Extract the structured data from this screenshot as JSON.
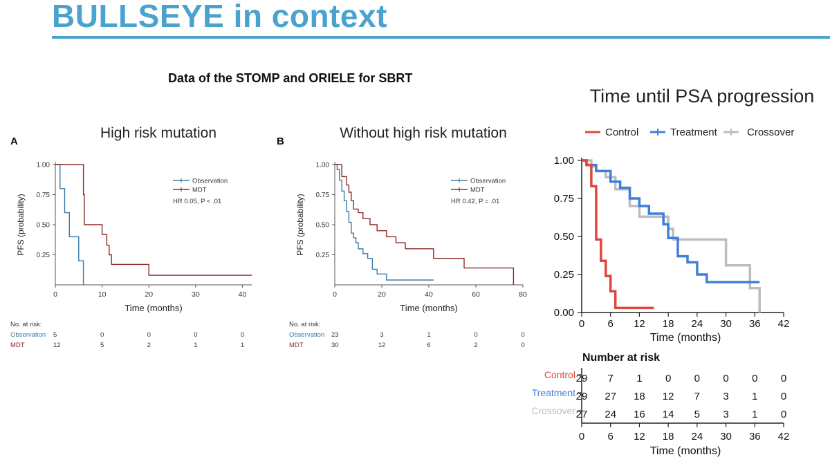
{
  "slide": {
    "title": "BULLSEYE in context",
    "subtitle": "Data of the STOMP and ORIELE for SBRT"
  },
  "colors": {
    "accent": "#4aa3cf",
    "observation": "#3b78a8",
    "mdt": "#8b2a2a",
    "control": "#e0463c",
    "treatment": "#3f7fdc",
    "crossover": "#bdbdbd"
  },
  "chart_data": [
    {
      "type": "line",
      "panel_label": "A",
      "title": "High risk mutation",
      "xlabel": "Time (months)",
      "ylabel": "PFS (probability)",
      "xlim": [
        0,
        42
      ],
      "ylim": [
        0,
        1
      ],
      "xticks": [
        0,
        10,
        20,
        30,
        40
      ],
      "yticks": [
        0.25,
        0.5,
        0.75,
        1.0
      ],
      "ytick_labels": [
        "0.25",
        "0.50",
        "0.75",
        "1.00"
      ],
      "legend": [
        "Observation",
        "MDT"
      ],
      "annotation": "HR 0.05, P < .01",
      "series": [
        {
          "name": "Observation",
          "x": [
            0,
            1,
            1,
            2,
            2,
            3,
            3,
            5,
            5,
            6,
            6
          ],
          "y": [
            1,
            1,
            0.8,
            0.8,
            0.6,
            0.6,
            0.4,
            0.4,
            0.2,
            0.2,
            0
          ]
        },
        {
          "name": "MDT",
          "x": [
            0,
            6,
            6,
            6.2,
            6.2,
            10,
            10,
            11,
            11,
            11.5,
            11.5,
            12,
            12,
            13,
            13,
            20,
            20,
            42
          ],
          "y": [
            1,
            1,
            0.75,
            0.75,
            0.5,
            0.5,
            0.42,
            0.42,
            0.33,
            0.33,
            0.25,
            0.25,
            0.17,
            0.17,
            0.17,
            0.17,
            0.08,
            0.08
          ]
        }
      ],
      "risk_table": {
        "heading": "No. at risk:",
        "rows": [
          {
            "name": "Observation",
            "values": [
              "5",
              "0",
              "0",
              "0",
              "0"
            ]
          },
          {
            "name": "MDT",
            "values": [
              "12",
              "5",
              "2",
              "1",
              "1"
            ]
          }
        ]
      }
    },
    {
      "type": "line",
      "panel_label": "B",
      "title": "Without high risk mutation",
      "xlabel": "Time (months)",
      "ylabel": "PFS (probability)",
      "xlim": [
        0,
        80
      ],
      "ylim": [
        0,
        1
      ],
      "xticks": [
        0,
        20,
        40,
        60,
        80
      ],
      "yticks": [
        0.25,
        0.5,
        0.75,
        1.0
      ],
      "ytick_labels": [
        "0.25",
        "0.50",
        "0.75",
        "1.00"
      ],
      "legend": [
        "Observation",
        "MDT"
      ],
      "annotation": "HR 0.42, P = .01",
      "series": [
        {
          "name": "Observation",
          "x": [
            0,
            1,
            1,
            2,
            2,
            3,
            3,
            4,
            4,
            5,
            5,
            6,
            6,
            7,
            7,
            8,
            8,
            9,
            9,
            10,
            10,
            12,
            12,
            14,
            14,
            16,
            16,
            18,
            18,
            22,
            22,
            42
          ],
          "y": [
            1,
            1,
            0.96,
            0.96,
            0.87,
            0.87,
            0.78,
            0.78,
            0.7,
            0.7,
            0.61,
            0.61,
            0.52,
            0.52,
            0.43,
            0.43,
            0.39,
            0.39,
            0.35,
            0.35,
            0.3,
            0.3,
            0.26,
            0.26,
            0.22,
            0.22,
            0.13,
            0.13,
            0.09,
            0.09,
            0.04,
            0.04
          ]
        },
        {
          "name": "MDT",
          "x": [
            0,
            3,
            3,
            5,
            5,
            6,
            6,
            7,
            7,
            8,
            8,
            10,
            10,
            12,
            12,
            15,
            15,
            18,
            18,
            22,
            22,
            26,
            26,
            30,
            30,
            42,
            42,
            55,
            55,
            76,
            76
          ],
          "y": [
            1,
            1,
            0.9,
            0.9,
            0.83,
            0.83,
            0.77,
            0.77,
            0.7,
            0.7,
            0.63,
            0.63,
            0.6,
            0.6,
            0.55,
            0.55,
            0.5,
            0.5,
            0.45,
            0.45,
            0.4,
            0.4,
            0.35,
            0.35,
            0.3,
            0.3,
            0.22,
            0.22,
            0.14,
            0.14,
            0
          ]
        }
      ],
      "risk_table": {
        "heading": "No. at risk:",
        "rows": [
          {
            "name": "Observation",
            "values": [
              "23",
              "3",
              "1",
              "0",
              "0"
            ]
          },
          {
            "name": "MDT",
            "values": [
              "30",
              "12",
              "6",
              "2",
              "0"
            ]
          }
        ]
      }
    },
    {
      "type": "line",
      "title": "Time until PSA progression",
      "xlabel": "Time (months)",
      "ylabel": "",
      "xlim": [
        0,
        42
      ],
      "ylim": [
        0,
        1
      ],
      "xticks": [
        0,
        6,
        12,
        18,
        24,
        30,
        36,
        42
      ],
      "yticks": [
        0,
        0.25,
        0.5,
        0.75,
        1.0
      ],
      "ytick_labels": [
        "0.00",
        "0.25",
        "0.50",
        "0.75",
        "1.00"
      ],
      "legend": [
        "Control",
        "Treatment",
        "Crossover"
      ],
      "series": [
        {
          "name": "Control",
          "x": [
            0,
            1,
            1,
            2,
            2,
            3,
            3,
            4,
            4,
            5,
            5,
            6,
            6,
            7,
            7,
            15
          ],
          "y": [
            1,
            1,
            0.97,
            0.97,
            0.83,
            0.83,
            0.48,
            0.48,
            0.34,
            0.34,
            0.24,
            0.24,
            0.14,
            0.14,
            0.03,
            0.03
          ]
        },
        {
          "name": "Treatment",
          "x": [
            0,
            1,
            1,
            3,
            3,
            6,
            6,
            8,
            8,
            10,
            10,
            12,
            12,
            14,
            14,
            17,
            17,
            18,
            18,
            20,
            20,
            22,
            22,
            24,
            24,
            26,
            26,
            37
          ],
          "y": [
            1,
            1,
            0.97,
            0.97,
            0.93,
            0.93,
            0.86,
            0.86,
            0.82,
            0.82,
            0.75,
            0.75,
            0.7,
            0.7,
            0.65,
            0.65,
            0.58,
            0.58,
            0.49,
            0.49,
            0.37,
            0.37,
            0.33,
            0.33,
            0.25,
            0.25,
            0.2,
            0.2
          ]
        },
        {
          "name": "Crossover",
          "x": [
            0,
            2,
            2,
            3,
            3,
            5,
            5,
            7,
            7,
            10,
            10,
            12,
            12,
            14,
            14,
            18,
            18,
            19,
            19,
            30,
            30,
            35,
            35,
            37,
            37
          ],
          "y": [
            1,
            1,
            0.96,
            0.96,
            0.93,
            0.93,
            0.89,
            0.89,
            0.81,
            0.81,
            0.7,
            0.7,
            0.63,
            0.63,
            0.63,
            0.63,
            0.55,
            0.55,
            0.48,
            0.48,
            0.31,
            0.31,
            0.16,
            0.16,
            0
          ]
        }
      ],
      "risk_table": {
        "heading": "Number at risk",
        "xticks": [
          0,
          6,
          12,
          18,
          24,
          30,
          36,
          42
        ],
        "rows": [
          {
            "name": "Control",
            "values": [
              "29",
              "7",
              "1",
              "0",
              "0",
              "0",
              "0",
              "0"
            ]
          },
          {
            "name": "Treatment",
            "values": [
              "29",
              "27",
              "18",
              "12",
              "7",
              "3",
              "1",
              "0"
            ]
          },
          {
            "name": "Crossover",
            "values": [
              "27",
              "24",
              "16",
              "14",
              "5",
              "3",
              "1",
              "0"
            ]
          }
        ],
        "xlabel": "Time (months)"
      }
    }
  ]
}
